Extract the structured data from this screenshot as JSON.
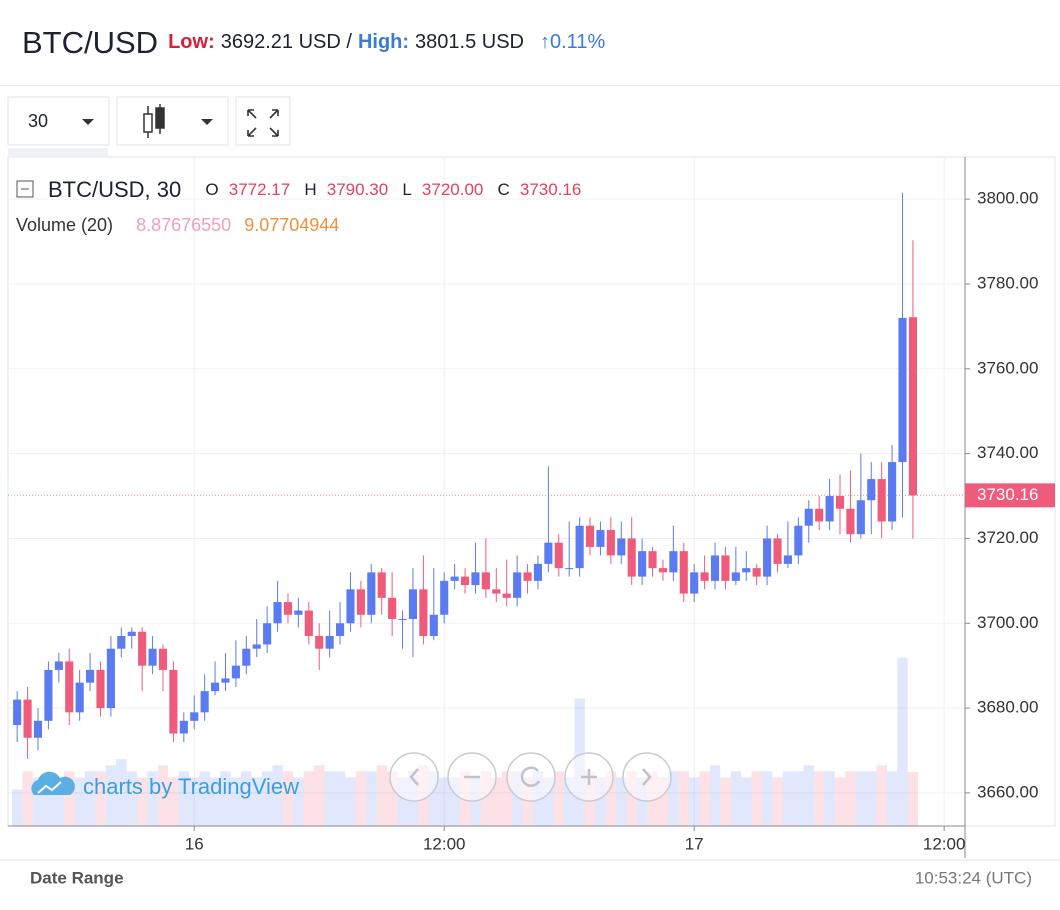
{
  "header": {
    "symbol": "BTC/USD",
    "low_label": "Low:",
    "low_value": "3692.21 USD /",
    "high_label": "High:",
    "high_value": "3801.5 USD",
    "change": "↑0.11%"
  },
  "toolbar": {
    "interval": "30"
  },
  "legend": {
    "title": "BTC/USD, 30",
    "o_label": "O",
    "o_value": "3772.17",
    "h_label": "H",
    "h_value": "3790.30",
    "l_label": "L",
    "l_value": "3720.00",
    "c_label": "C",
    "c_value": "3730.16",
    "volume_label": "Volume (20)",
    "volume_value": "8.87676550",
    "volume_ma": "9.07704944"
  },
  "watermark": "charts by TradingView",
  "footer": {
    "date_range": "Date Range",
    "time": "10:53:24 (UTC)"
  },
  "chart_data": {
    "type": "candlestick",
    "up_color": "#5b7cf0",
    "down_color": "#ef5b7b",
    "xlim": [
      -8.94,
      37
    ],
    "ylim": [
      3652.2,
      3809.7
    ],
    "vlim": [
      0,
      110
    ],
    "grid": true,
    "xticks": [
      {
        "value": 0,
        "label": "16"
      },
      {
        "value": 12,
        "label": "12:00"
      },
      {
        "value": 24,
        "label": "17"
      },
      {
        "value": 36,
        "label": "12:00"
      }
    ],
    "yticks": [
      {
        "value": 3660,
        "label": "3660.00"
      },
      {
        "value": 3680,
        "label": "3680.00"
      },
      {
        "value": 3700,
        "label": "3700.00"
      },
      {
        "value": 3720,
        "label": "3720.00"
      },
      {
        "value": 3740,
        "label": "3740.00"
      },
      {
        "value": 3760,
        "label": "3760.00"
      },
      {
        "value": 3780,
        "label": "3780.00"
      },
      {
        "value": 3800,
        "label": "3800.00"
      }
    ],
    "x": [
      -8.5,
      -8,
      -7.5,
      -7,
      -6.5,
      -6,
      -5.5,
      -5,
      -4.5,
      -4,
      -3.5,
      -3,
      -2.5,
      -2,
      -1.5,
      -1,
      -0.5,
      0,
      0.5,
      1,
      1.5,
      2,
      2.5,
      3,
      3.5,
      4,
      4.5,
      5,
      5.5,
      6,
      6.5,
      7,
      7.5,
      8,
      8.5,
      9,
      9.5,
      10,
      10.5,
      11,
      11.5,
      12,
      12.5,
      13,
      13.5,
      14,
      14.5,
      15,
      15.5,
      16,
      16.5,
      17,
      17.5,
      18,
      18.5,
      19,
      19.5,
      20,
      20.5,
      21,
      21.5,
      22,
      22.5,
      23,
      23.5,
      24,
      24.5,
      25,
      25.5,
      26,
      26.5,
      27,
      27.5,
      28,
      28.5,
      29,
      29.5,
      30,
      30.5,
      31,
      31.5,
      32,
      32.5,
      33,
      33.5,
      34,
      34.5
    ],
    "open": [
      3676,
      3682,
      3673,
      3677,
      3689,
      3691,
      3679,
      3686,
      3689,
      3680,
      3694,
      3697,
      3698,
      3690,
      3694,
      3689,
      3674,
      3677,
      3679,
      3684,
      3686,
      3687,
      3690,
      3694,
      3695,
      3700,
      3705,
      3702,
      3703,
      3697,
      3694,
      3697,
      3700,
      3708,
      3702,
      3712,
      3706,
      3701,
      3701,
      3708,
      3697,
      3702,
      3710,
      3711,
      3709,
      3712,
      3708,
      3707,
      3706,
      3712,
      3710,
      3714,
      3719,
      3713,
      3713,
      3723,
      3718,
      3722,
      3716,
      3720,
      3711,
      3717,
      3713,
      3712,
      3717,
      3707,
      3712,
      3710,
      3716,
      3710,
      3712,
      3713,
      3711,
      3720,
      3714,
      3716,
      3723,
      3727,
      3724,
      3730,
      3727,
      3721,
      3729,
      3734,
      3724,
      3738,
      3772.17
    ],
    "high": [
      3684,
      3685,
      3680,
      3691,
      3693,
      3694,
      3689,
      3693,
      3691,
      3697,
      3699,
      3699,
      3699,
      3697,
      3695,
      3691,
      3679,
      3683,
      3688,
      3691,
      3693,
      3696,
      3697,
      3701,
      3704,
      3710,
      3707,
      3706,
      3705,
      3700,
      3703,
      3705,
      3712,
      3710,
      3714,
      3713,
      3712,
      3703,
      3713,
      3716,
      3713,
      3712,
      3714,
      3713,
      3719,
      3720,
      3713,
      3715,
      3716,
      3714,
      3716,
      3737,
      3721,
      3724,
      3725,
      3725,
      3724,
      3725,
      3724,
      3725,
      3720,
      3718,
      3715,
      3723,
      3719,
      3714,
      3716,
      3719,
      3718,
      3718,
      3717,
      3714,
      3723,
      3721,
      3724,
      3725,
      3729,
      3730,
      3734,
      3735,
      3736,
      3740,
      3738,
      3738,
      3742,
      3801.5,
      3790.3
    ],
    "low": [
      3672,
      3668,
      3670,
      3675,
      3686,
      3676,
      3677,
      3684,
      3678,
      3678,
      3692,
      3694,
      3684,
      3688,
      3684,
      3672,
      3672,
      3675,
      3677,
      3683,
      3684,
      3685,
      3688,
      3692,
      3693,
      3698,
      3700,
      3699,
      3695,
      3689,
      3692,
      3695,
      3698,
      3699,
      3700,
      3702,
      3697,
      3694,
      3692,
      3695,
      3696,
      3700,
      3708,
      3707,
      3707,
      3706,
      3705,
      3704,
      3704,
      3707,
      3708,
      3712,
      3711,
      3711,
      3711,
      3716,
      3716,
      3714,
      3714,
      3709,
      3709,
      3711,
      3710,
      3710,
      3705,
      3705,
      3708,
      3708,
      3708,
      3709,
      3710,
      3709,
      3709,
      3712,
      3713,
      3714,
      3719,
      3722,
      3722,
      3721,
      3719,
      3720,
      3721,
      3720,
      3722,
      3725,
      3720
    ],
    "close": [
      3682,
      3673,
      3677,
      3689,
      3691,
      3679,
      3686,
      3689,
      3680,
      3694,
      3697,
      3698,
      3690,
      3694,
      3689,
      3674,
      3677,
      3679,
      3684,
      3686,
      3687,
      3690,
      3694,
      3695,
      3700,
      3705,
      3702,
      3703,
      3697,
      3694,
      3697,
      3700,
      3708,
      3702,
      3712,
      3706,
      3701,
      3701,
      3708,
      3697,
      3702,
      3710,
      3711,
      3709,
      3712,
      3708,
      3707,
      3706,
      3712,
      3710,
      3714,
      3719,
      3713,
      3713,
      3723,
      3718,
      3722,
      3716,
      3720,
      3711,
      3717,
      3713,
      3712,
      3717,
      3707,
      3712,
      3710,
      3716,
      3710,
      3712,
      3713,
      3711,
      3720,
      3714,
      3716,
      3723,
      3727,
      3724,
      3730,
      3727,
      3721,
      3729,
      3734,
      3724,
      3738,
      3772,
      3730.16
    ],
    "volume": [
      6,
      9,
      8,
      7,
      8,
      9,
      8,
      9,
      9,
      10,
      11,
      9,
      8,
      9,
      10,
      8,
      9,
      8,
      9,
      8,
      9,
      8,
      9,
      8,
      9,
      10,
      9,
      8,
      9,
      10,
      9,
      9,
      8,
      9,
      9,
      10,
      9,
      8,
      9,
      10,
      9,
      8,
      8,
      9,
      8,
      9,
      8,
      9,
      9,
      8,
      9,
      8,
      9,
      8,
      21,
      9,
      8,
      9,
      8,
      9,
      8,
      9,
      8,
      9,
      9,
      8,
      9,
      10,
      8,
      9,
      8,
      9,
      9,
      8,
      9,
      9,
      10,
      9,
      9,
      8,
      9,
      9,
      9,
      10,
      9,
      27.7,
      8.8767655
    ]
  }
}
